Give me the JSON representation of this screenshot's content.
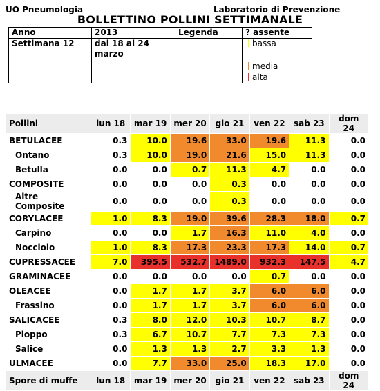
{
  "header": {
    "unit": "UO Pneumologia",
    "lab": "Laboratorio di Prevenzione",
    "title": "BOLLETTINO POLLINI SETTIMANALE"
  },
  "info": {
    "anno_label": "Anno",
    "anno_value": "2013",
    "legenda_label": "Legenda",
    "absent_label": "? assente",
    "week_label": "Settimana 12",
    "date_line1": "dal 18  al 24",
    "date_line2": "marzo",
    "legend": [
      {
        "label": "bassa",
        "color": "#ffff00"
      },
      {
        "label": "media",
        "color": "#f08a2c"
      },
      {
        "label": "alta",
        "color": "#e8312a"
      }
    ]
  },
  "colors": {
    "bassa": "#ffff00",
    "media": "#f08a2c",
    "alta": "#e8312a"
  },
  "table": {
    "first_col": "Pollini",
    "days": [
      "lun 18",
      "mar 19",
      "mer 20",
      "gio 21",
      "ven 22",
      "sab 23",
      "dom 24"
    ],
    "footer_label": "Spore di muffe",
    "rows": [
      {
        "name": "BETULACEE",
        "sub": false,
        "values": [
          "0.3",
          "10.0",
          "19.6",
          "33.0",
          "19.6",
          "11.3",
          "0.0"
        ],
        "levels": [
          "n",
          "y",
          "o",
          "o",
          "o",
          "y",
          "n"
        ]
      },
      {
        "name": "Ontano",
        "sub": true,
        "values": [
          "0.3",
          "10.0",
          "19.0",
          "21.6",
          "15.0",
          "11.3",
          "0.0"
        ],
        "levels": [
          "n",
          "y",
          "o",
          "o",
          "y",
          "y",
          "n"
        ]
      },
      {
        "name": "Betulla",
        "sub": true,
        "values": [
          "0.0",
          "0.0",
          "0.7",
          "11.3",
          "4.7",
          "0.0",
          "0.0"
        ],
        "levels": [
          "n",
          "n",
          "y",
          "y",
          "y",
          "n",
          "n"
        ]
      },
      {
        "name": "COMPOSITE",
        "sub": false,
        "values": [
          "0.0",
          "0.0",
          "0.0",
          "0.3",
          "0.0",
          "0.0",
          "0.0"
        ],
        "levels": [
          "n",
          "n",
          "n",
          "y",
          "n",
          "n",
          "n"
        ]
      },
      {
        "name": "Altre Composite",
        "sub": true,
        "values": [
          "0.0",
          "0.0",
          "0.0",
          "0.3",
          "0.0",
          "0.0",
          "0.0"
        ],
        "levels": [
          "n",
          "n",
          "n",
          "y",
          "n",
          "n",
          "n"
        ]
      },
      {
        "name": "CORYLACEE",
        "sub": false,
        "values": [
          "1.0",
          "8.3",
          "19.0",
          "39.6",
          "28.3",
          "18.0",
          "0.7"
        ],
        "levels": [
          "y",
          "y",
          "o",
          "o",
          "o",
          "o",
          "y"
        ]
      },
      {
        "name": "Carpino",
        "sub": true,
        "values": [
          "0.0",
          "0.0",
          "1.7",
          "16.3",
          "11.0",
          "4.0",
          "0.0"
        ],
        "levels": [
          "n",
          "n",
          "y",
          "o",
          "y",
          "y",
          "n"
        ]
      },
      {
        "name": "Nocciolo",
        "sub": true,
        "values": [
          "1.0",
          "8.3",
          "17.3",
          "23.3",
          "17.3",
          "14.0",
          "0.7"
        ],
        "levels": [
          "y",
          "y",
          "o",
          "o",
          "o",
          "y",
          "y"
        ]
      },
      {
        "name": "CUPRESSACEE",
        "sub": false,
        "values": [
          "7.0",
          "395.5",
          "532.7",
          "1489.0",
          "932.3",
          "147.5",
          "4.7"
        ],
        "levels": [
          "y",
          "r",
          "r",
          "r",
          "r",
          "r",
          "y"
        ]
      },
      {
        "name": "GRAMINACEE",
        "sub": false,
        "values": [
          "0.0",
          "0.0",
          "0.0",
          "0.0",
          "0.7",
          "0.0",
          "0.0"
        ],
        "levels": [
          "n",
          "n",
          "n",
          "n",
          "y",
          "n",
          "n"
        ]
      },
      {
        "name": "OLEACEE",
        "sub": false,
        "values": [
          "0.0",
          "1.7",
          "1.7",
          "3.7",
          "6.0",
          "6.0",
          "0.0"
        ],
        "levels": [
          "n",
          "y",
          "y",
          "y",
          "o",
          "o",
          "n"
        ]
      },
      {
        "name": "Frassino",
        "sub": true,
        "values": [
          "0.0",
          "1.7",
          "1.7",
          "3.7",
          "6.0",
          "6.0",
          "0.0"
        ],
        "levels": [
          "n",
          "y",
          "y",
          "y",
          "o",
          "o",
          "n"
        ]
      },
      {
        "name": "SALICACEE",
        "sub": false,
        "values": [
          "0.3",
          "8.0",
          "12.0",
          "10.3",
          "10.7",
          "8.7",
          "0.0"
        ],
        "levels": [
          "n",
          "y",
          "y",
          "y",
          "y",
          "y",
          "n"
        ]
      },
      {
        "name": "Pioppo",
        "sub": true,
        "values": [
          "0.3",
          "6.7",
          "10.7",
          "7.7",
          "7.3",
          "7.3",
          "0.0"
        ],
        "levels": [
          "n",
          "y",
          "y",
          "y",
          "y",
          "y",
          "n"
        ]
      },
      {
        "name": "Salice",
        "sub": true,
        "values": [
          "0.0",
          "1.3",
          "1.3",
          "2.7",
          "3.3",
          "1.3",
          "0.0"
        ],
        "levels": [
          "n",
          "y",
          "y",
          "y",
          "y",
          "y",
          "n"
        ]
      },
      {
        "name": "ULMACEE",
        "sub": false,
        "values": [
          "0.0",
          "7.7",
          "33.0",
          "25.0",
          "18.3",
          "17.0",
          "0.0"
        ],
        "levels": [
          "n",
          "y",
          "o",
          "o",
          "y",
          "y",
          "n"
        ]
      }
    ]
  }
}
